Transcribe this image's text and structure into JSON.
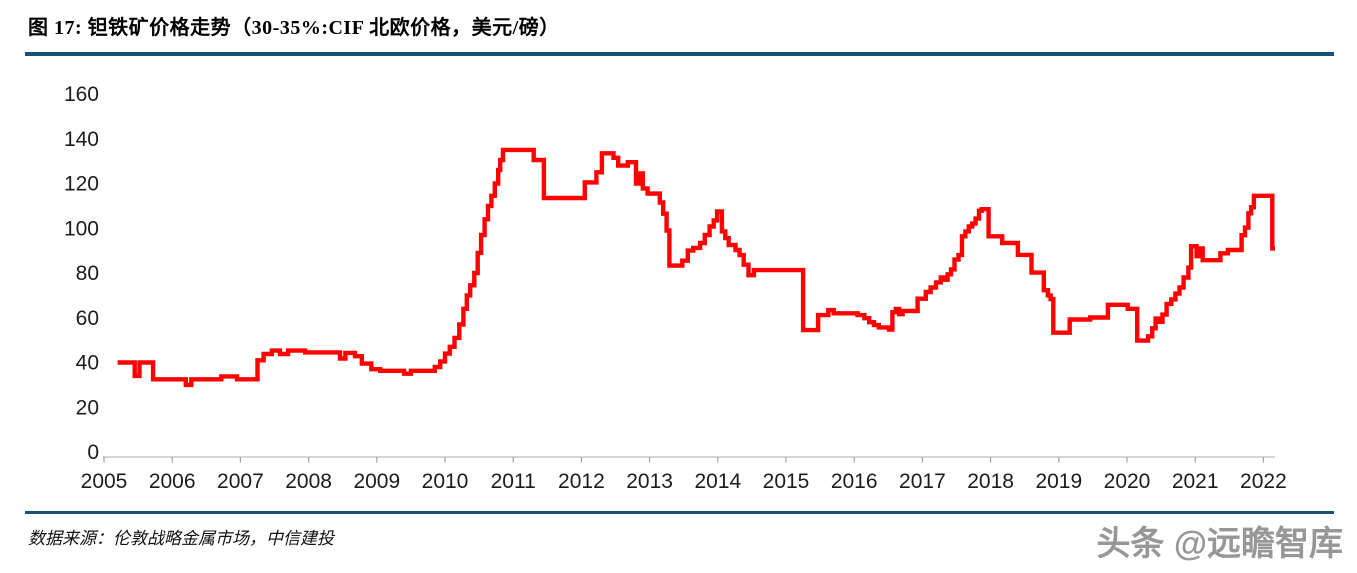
{
  "figure": {
    "title": "图 17:  钽铁矿价格走势（30-35%:CIF  北欧价格，美元/磅）",
    "source": "数据来源：伦敦战略金属市场，中信建投",
    "watermark": "头条 @远瞻智库"
  },
  "colors": {
    "line": "#fe0202",
    "divider_rule": "#17507a",
    "axis_line": "#c8c8c8",
    "tick_mark": "#a0a0a0",
    "axis_label": "#1c1c1c",
    "watermark": "#979797"
  },
  "chart_data": {
    "type": "line",
    "style": "step-after",
    "title": "钽铁矿价格走势（30-35%:CIF 北欧价格，美元/磅）",
    "xlabel": "",
    "ylabel": "",
    "grid": false,
    "legend": "none",
    "ylim": [
      0,
      160
    ],
    "xlim": [
      2005,
      2022.3
    ],
    "yticks": [
      0,
      20,
      40,
      60,
      80,
      100,
      120,
      140,
      160
    ],
    "xticks": [
      2005,
      2006,
      2007,
      2008,
      2009,
      2010,
      2011,
      2012,
      2013,
      2014,
      2015,
      2016,
      2017,
      2018,
      2019,
      2020,
      2021,
      2022
    ],
    "series": [
      {
        "name": "钽铁矿价格 30-35%:CIF 北欧（美元/磅）",
        "end_t": 2022.17,
        "points": [
          [
            2005.2,
            40
          ],
          [
            2005.45,
            34
          ],
          [
            2005.52,
            40
          ],
          [
            2005.72,
            32.5
          ],
          [
            2006.2,
            30
          ],
          [
            2006.28,
            32.5
          ],
          [
            2006.72,
            33.8
          ],
          [
            2006.95,
            32.5
          ],
          [
            2007.25,
            41
          ],
          [
            2007.34,
            43.8
          ],
          [
            2007.46,
            45.3
          ],
          [
            2007.58,
            43.8
          ],
          [
            2007.7,
            45.3
          ],
          [
            2007.95,
            44.5
          ],
          [
            2008.46,
            41.8
          ],
          [
            2008.54,
            44.3
          ],
          [
            2008.68,
            42.8
          ],
          [
            2008.78,
            39.5
          ],
          [
            2008.92,
            37
          ],
          [
            2009.05,
            36.3
          ],
          [
            2009.4,
            35
          ],
          [
            2009.5,
            36.3
          ],
          [
            2009.85,
            38
          ],
          [
            2009.93,
            40.5
          ],
          [
            2010.0,
            44
          ],
          [
            2010.07,
            47
          ],
          [
            2010.14,
            51
          ],
          [
            2010.21,
            57
          ],
          [
            2010.27,
            64
          ],
          [
            2010.32,
            70
          ],
          [
            2010.37,
            74.5
          ],
          [
            2010.43,
            80
          ],
          [
            2010.48,
            89
          ],
          [
            2010.53,
            97
          ],
          [
            2010.58,
            104
          ],
          [
            2010.63,
            110
          ],
          [
            2010.68,
            114.5
          ],
          [
            2010.73,
            120
          ],
          [
            2010.78,
            126
          ],
          [
            2010.81,
            130.5
          ],
          [
            2010.85,
            135
          ],
          [
            2011.3,
            130.5
          ],
          [
            2011.45,
            113.5
          ],
          [
            2012.05,
            120.5
          ],
          [
            2012.22,
            125
          ],
          [
            2012.3,
            133.5
          ],
          [
            2012.47,
            131.5
          ],
          [
            2012.54,
            128
          ],
          [
            2012.68,
            129.5
          ],
          [
            2012.8,
            120
          ],
          [
            2012.84,
            124.5
          ],
          [
            2012.9,
            117.8
          ],
          [
            2012.97,
            115.5
          ],
          [
            2013.15,
            111.5
          ],
          [
            2013.2,
            106.5
          ],
          [
            2013.25,
            99
          ],
          [
            2013.29,
            83.3
          ],
          [
            2013.48,
            85.5
          ],
          [
            2013.56,
            90
          ],
          [
            2013.64,
            91.2
          ],
          [
            2013.74,
            93.4
          ],
          [
            2013.81,
            97
          ],
          [
            2013.88,
            100.8
          ],
          [
            2013.94,
            103.5
          ],
          [
            2013.99,
            107.5
          ],
          [
            2014.06,
            98.6
          ],
          [
            2014.11,
            95.6
          ],
          [
            2014.16,
            92.5
          ],
          [
            2014.26,
            90.3
          ],
          [
            2014.32,
            88
          ],
          [
            2014.38,
            83.7
          ],
          [
            2014.45,
            79
          ],
          [
            2014.53,
            81.3
          ],
          [
            2015.25,
            54.5
          ],
          [
            2015.47,
            61.2
          ],
          [
            2015.62,
            63.4
          ],
          [
            2015.7,
            62
          ],
          [
            2016.05,
            61.2
          ],
          [
            2016.15,
            59.8
          ],
          [
            2016.22,
            58
          ],
          [
            2016.29,
            56.7
          ],
          [
            2016.36,
            55.7
          ],
          [
            2016.51,
            54.7
          ],
          [
            2016.56,
            62.5
          ],
          [
            2016.61,
            63.9
          ],
          [
            2016.66,
            61.6
          ],
          [
            2016.71,
            63
          ],
          [
            2016.93,
            68.5
          ],
          [
            2017.05,
            71.5
          ],
          [
            2017.12,
            73.5
          ],
          [
            2017.2,
            75.8
          ],
          [
            2017.27,
            78
          ],
          [
            2017.32,
            77
          ],
          [
            2017.37,
            79.4
          ],
          [
            2017.42,
            81.6
          ],
          [
            2017.47,
            86
          ],
          [
            2017.53,
            88
          ],
          [
            2017.58,
            96.4
          ],
          [
            2017.63,
            98.6
          ],
          [
            2017.68,
            100.8
          ],
          [
            2017.73,
            102.1
          ],
          [
            2017.78,
            104.3
          ],
          [
            2017.83,
            107.8
          ],
          [
            2017.87,
            108.5
          ],
          [
            2017.97,
            96.4
          ],
          [
            2018.17,
            93.4
          ],
          [
            2018.4,
            88.1
          ],
          [
            2018.6,
            80.2
          ],
          [
            2018.78,
            72.3
          ],
          [
            2018.84,
            70
          ],
          [
            2018.88,
            68.4
          ],
          [
            2018.92,
            53.3
          ],
          [
            2019.16,
            59.2
          ],
          [
            2019.46,
            60.1
          ],
          [
            2019.72,
            65.8
          ],
          [
            2020.01,
            64
          ],
          [
            2020.15,
            49.8
          ],
          [
            2020.31,
            51.7
          ],
          [
            2020.37,
            55.3
          ],
          [
            2020.42,
            59.6
          ],
          [
            2020.47,
            58.2
          ],
          [
            2020.52,
            61.4
          ],
          [
            2020.58,
            66.2
          ],
          [
            2020.65,
            68.2
          ],
          [
            2020.71,
            70.8
          ],
          [
            2020.77,
            73.5
          ],
          [
            2020.83,
            78
          ],
          [
            2020.9,
            82.4
          ],
          [
            2020.94,
            92
          ],
          [
            2021.02,
            87.5
          ],
          [
            2021.06,
            91
          ],
          [
            2021.11,
            85.7
          ],
          [
            2021.37,
            88.8
          ],
          [
            2021.48,
            90.3
          ],
          [
            2021.68,
            96.9
          ],
          [
            2021.73,
            100.3
          ],
          [
            2021.78,
            106.7
          ],
          [
            2021.82,
            109.4
          ],
          [
            2021.86,
            114.5
          ],
          [
            2022.13,
            91
          ]
        ]
      }
    ]
  }
}
